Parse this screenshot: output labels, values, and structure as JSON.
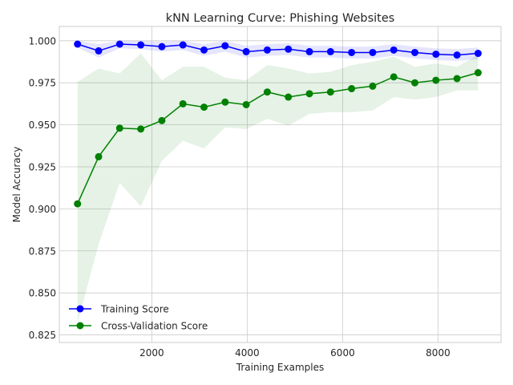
{
  "chart_data": {
    "type": "line",
    "title": "kNN Learning Curve: Phishing Websites",
    "xlabel": "Training Examples",
    "ylabel": "Model Accuracy",
    "xlim": [
      60,
      9320
    ],
    "ylim": [
      0.8205,
      1.0085
    ],
    "grid": true,
    "legend_position": "bottom-left",
    "x_ticks": [
      2000,
      4000,
      6000,
      8000
    ],
    "x_tick_labels": [
      "2000",
      "4000",
      "6000",
      "8000"
    ],
    "y_ticks": [
      0.825,
      0.85,
      0.875,
      0.9,
      0.925,
      0.95,
      0.975,
      1.0
    ],
    "y_tick_labels": [
      "0.825",
      "0.850",
      "0.875",
      "0.900",
      "0.925",
      "0.950",
      "0.975",
      "1.000"
    ],
    "x": [
      442,
      884,
      1326,
      1768,
      2210,
      2652,
      3094,
      3536,
      3978,
      4420,
      4862,
      5304,
      5746,
      6188,
      6630,
      7072,
      7514,
      7956,
      8398,
      8840
    ],
    "series": [
      {
        "name": "Training Score",
        "color": "#0000ff",
        "band_color": "#0000ff",
        "values": [
          0.998,
          0.994,
          0.998,
          0.9975,
          0.9965,
          0.9975,
          0.9945,
          0.997,
          0.9935,
          0.9945,
          0.995,
          0.9935,
          0.9935,
          0.993,
          0.993,
          0.9945,
          0.993,
          0.992,
          0.9915,
          0.9925
        ],
        "band_lower": [
          0.996,
          0.99,
          0.9955,
          0.995,
          0.9935,
          0.9945,
          0.991,
          0.9935,
          0.99,
          0.991,
          0.9915,
          0.99,
          0.99,
          0.9895,
          0.9895,
          0.991,
          0.9895,
          0.9885,
          0.988,
          0.989
        ],
        "band_upper": [
          1.0,
          0.998,
          1.0,
          1.0,
          0.9995,
          1.0,
          0.998,
          1.0,
          0.997,
          0.998,
          0.9985,
          0.997,
          0.997,
          0.9965,
          0.9965,
          0.998,
          0.9965,
          0.9955,
          0.995,
          0.996
        ]
      },
      {
        "name": "Cross-Validation Score",
        "color": "#008000",
        "band_color": "#008000",
        "values": [
          0.903,
          0.931,
          0.948,
          0.9475,
          0.9525,
          0.9625,
          0.9605,
          0.9635,
          0.962,
          0.9695,
          0.9665,
          0.9685,
          0.9695,
          0.9715,
          0.973,
          0.9785,
          0.975,
          0.9765,
          0.9775,
          0.981
        ],
        "band_lower": [
          0.832,
          0.879,
          0.9155,
          0.9015,
          0.9285,
          0.9405,
          0.936,
          0.9485,
          0.9475,
          0.9535,
          0.9495,
          0.9565,
          0.9575,
          0.9575,
          0.9585,
          0.9665,
          0.965,
          0.9665,
          0.9705,
          0.9705
        ],
        "band_upper": [
          0.9755,
          0.9835,
          0.9805,
          0.9925,
          0.9765,
          0.9845,
          0.9845,
          0.978,
          0.9765,
          0.9855,
          0.9835,
          0.9805,
          0.9815,
          0.9855,
          0.9875,
          0.9905,
          0.9845,
          0.9865,
          0.9845,
          0.9915
        ]
      }
    ]
  }
}
